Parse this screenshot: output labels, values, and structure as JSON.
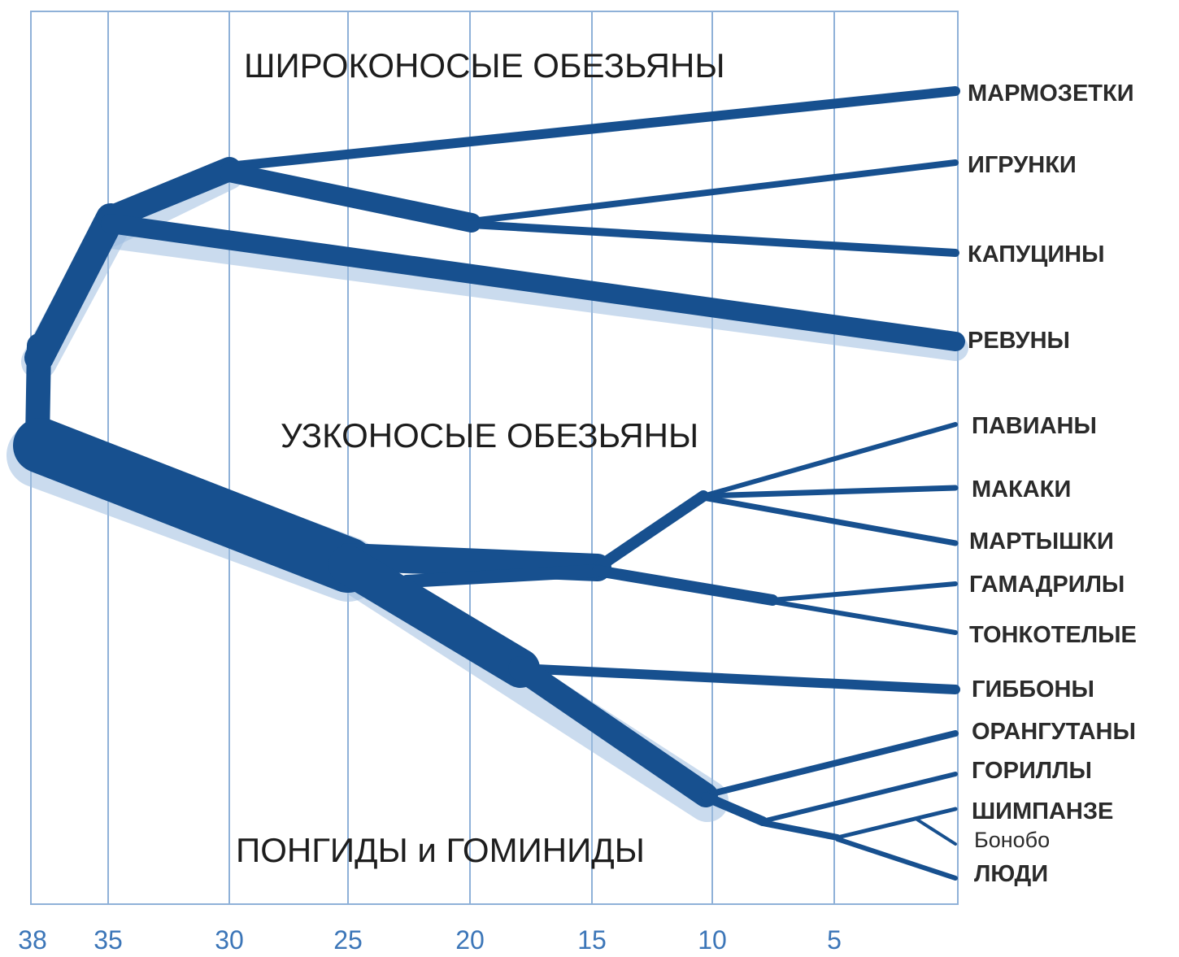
{
  "groups": {
    "platyrrhini": "ШИРОКОНОСЫЕ ОБЕЗЬЯНЫ",
    "catarrhini": "УЗКОНОСЫЕ ОБЕЗЬЯНЫ",
    "hominoids": "ПОНГИДЫ и ГОМИНИДЫ"
  },
  "axis": {
    "ticks": [
      "38",
      "35",
      "30",
      "25",
      "20",
      "15",
      "10",
      "5"
    ]
  },
  "leaves": [
    "МАРМОЗЕТКИ",
    "ИГРУНКИ",
    "КАПУЦИНЫ",
    "РЕВУНЫ",
    "ПАВИАНЫ",
    "МАКАКИ",
    "МАРТЫШКИ",
    "ГАМАДРИЛЫ",
    "ТОНКОТЕЛЫЕ",
    "ГИББОНЫ",
    "ОРАНГУТАНЫ",
    "ГОРИЛЛЫ",
    "ШИМПАНЗЕ",
    "Бонобо",
    "ЛЮДИ"
  ],
  "colors": {
    "branch": "#17508f",
    "grid": "#8fb1d8",
    "tick_text": "#3c76b8",
    "label_text": "#2b2b2b"
  }
}
